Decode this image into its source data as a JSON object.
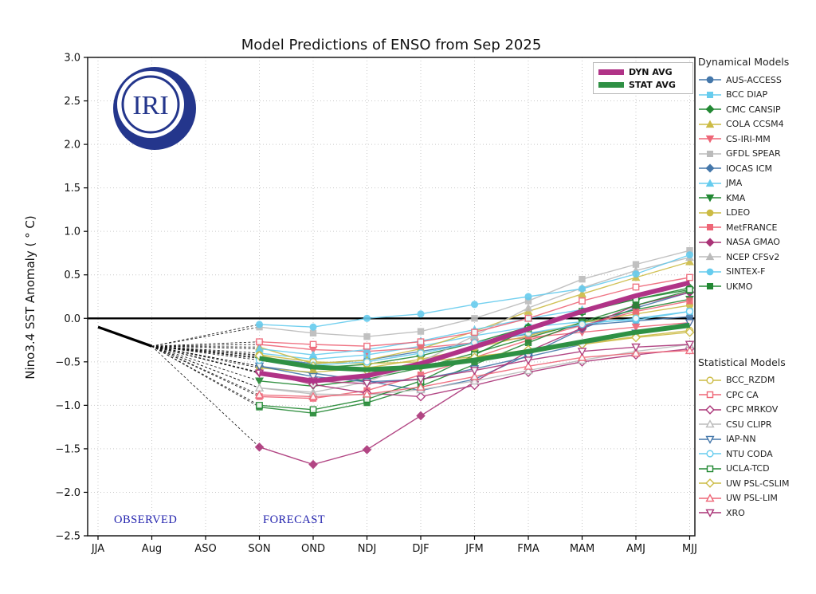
{
  "title": "Model Predictions of ENSO from Sep 2025",
  "logo": {
    "text": "IRI",
    "color": "#24368C"
  },
  "annotations": {
    "observed_label": "OBSERVED",
    "forecast_label": "FORECAST",
    "label_color": "#2323AE"
  },
  "legend_panel": {
    "dynamical_heading": "Dynamical Models",
    "statistical_heading": "Statistical Models"
  },
  "chart_data": {
    "type": "line",
    "title": "Model Predictions of ENSO from Sep 2025",
    "xlabel": "",
    "ylabel": "Nino3.4 SST Anomaly ( ° C)",
    "ylim": [
      -2.5,
      3.0
    ],
    "ytick_step": 0.5,
    "yticks": [
      3.0,
      2.5,
      2.0,
      1.5,
      1.0,
      0.5,
      0.0,
      -0.5,
      -1.0,
      -1.5,
      -2.0,
      -2.5
    ],
    "categories": [
      "JJA",
      "Aug",
      "ASO",
      "SON",
      "OND",
      "NDJ",
      "DJF",
      "JFM",
      "FMA",
      "MAM",
      "AMJ",
      "MJJ"
    ],
    "grid": "dotted",
    "zero_line": 0.0,
    "forecast_start_index": 3,
    "observed": {
      "name": "Observed",
      "color": "#000000",
      "x": [
        "JJA",
        "Aug"
      ],
      "values": [
        -0.1,
        -0.32
      ]
    },
    "series": [
      {
        "name": "AUS-ACCESS",
        "group": "dynamical",
        "color": "#4477AA",
        "marker": "circle",
        "fill": "filled",
        "values": [
          -0.45,
          -0.52,
          -0.48,
          -0.38,
          -0.28,
          -0.18,
          -0.08,
          -0.03,
          0.02
        ]
      },
      {
        "name": "BCC DIAP",
        "group": "dynamical",
        "color": "#66CCEE",
        "marker": "square",
        "fill": "filled",
        "values": [
          -0.4,
          -0.47,
          -0.42,
          -0.32,
          -0.2,
          -0.1,
          -0.04,
          -0.02,
          0.08
        ]
      },
      {
        "name": "CMC CANSIP",
        "group": "dynamical",
        "color": "#228833",
        "marker": "diamond",
        "fill": "filled",
        "values": [
          -0.45,
          -0.57,
          -0.53,
          -0.43,
          -0.28,
          -0.1,
          0.07,
          0.22,
          0.35
        ]
      },
      {
        "name": "COLA CCSM4",
        "group": "dynamical",
        "color": "#CCBB44",
        "marker": "triangle",
        "fill": "filled",
        "values": [
          -0.33,
          -0.52,
          -0.48,
          -0.35,
          -0.15,
          0.08,
          0.28,
          0.47,
          0.65
        ]
      },
      {
        "name": "CS-IRI-MM",
        "group": "dynamical",
        "color": "#EE6677",
        "marker": "triangle-down",
        "fill": "filled",
        "values": [
          -0.3,
          -0.36,
          -0.38,
          -0.34,
          -0.28,
          -0.22,
          -0.16,
          -0.1,
          -0.05
        ]
      },
      {
        "name": "GFDL SPEAR",
        "group": "dynamical",
        "color": "#BBBBBB",
        "marker": "square",
        "fill": "filled",
        "values": [
          -0.1,
          -0.17,
          -0.21,
          -0.15,
          0.0,
          0.2,
          0.45,
          0.62,
          0.78
        ]
      },
      {
        "name": "IOCAS ICM",
        "group": "dynamical",
        "color": "#4477AA",
        "marker": "diamond",
        "fill": "filled",
        "values": [
          -0.55,
          -0.63,
          -0.72,
          -0.83,
          -0.7,
          -0.42,
          -0.12,
          0.12,
          0.3
        ]
      },
      {
        "name": "JMA",
        "group": "dynamical",
        "color": "#66CCEE",
        "marker": "triangle",
        "fill": "filled",
        "values": [
          -0.35,
          -0.42,
          -0.36,
          -0.26,
          -0.13,
          0.0,
          0.1
        ]
      },
      {
        "name": "KMA",
        "group": "dynamical",
        "color": "#228833",
        "marker": "triangle-down",
        "fill": "filled",
        "values": [
          -0.72,
          -0.78,
          -0.7,
          -0.57,
          -0.4,
          -0.22,
          -0.05,
          0.1,
          0.22
        ]
      },
      {
        "name": "LDEO",
        "group": "dynamical",
        "color": "#CCBB44",
        "marker": "circle",
        "fill": "filled",
        "values": [
          -0.57,
          -0.62,
          -0.57,
          -0.47,
          -0.34,
          -0.2,
          -0.05,
          0.05,
          0.15
        ]
      },
      {
        "name": "MetFRANCE",
        "group": "dynamical",
        "color": "#EE6677",
        "marker": "square",
        "fill": "filled",
        "values": [
          -0.9,
          -0.92,
          -0.83,
          -0.65,
          -0.45,
          -0.25,
          -0.08,
          0.08,
          0.2
        ]
      },
      {
        "name": "NASA GMAO",
        "group": "dynamical",
        "color": "#AA3377",
        "marker": "diamond",
        "fill": "filled",
        "values": [
          -1.48,
          -1.68,
          -1.51,
          -1.12,
          -0.73,
          -0.38,
          -0.11,
          0.15,
          0.3
        ]
      },
      {
        "name": "NCEP CFSv2",
        "group": "dynamical",
        "color": "#BBBBBB",
        "marker": "triangle",
        "fill": "filled",
        "values": [
          -0.8,
          -0.85,
          -0.73,
          -0.5,
          -0.2,
          0.12,
          0.35,
          0.55,
          0.7
        ]
      },
      {
        "name": "SINTEX-F",
        "group": "dynamical",
        "color": "#66CCEE",
        "marker": "circle",
        "fill": "filled",
        "values": [
          -0.07,
          -0.1,
          0.0,
          0.05,
          0.16,
          0.25,
          0.34,
          0.51,
          0.73
        ]
      },
      {
        "name": "UKMO",
        "group": "dynamical",
        "color": "#228833",
        "marker": "square",
        "fill": "filled",
        "values": [
          -1.02,
          -1.09,
          -0.97,
          -0.78,
          -0.53,
          -0.28,
          -0.04,
          0.15,
          0.32
        ]
      },
      {
        "name": "BCC_RZDM",
        "group": "statistical",
        "color": "#CCBB44",
        "marker": "circle",
        "fill": "open",
        "values": [
          -0.42,
          -0.5,
          -0.52,
          -0.5,
          -0.44,
          -0.37,
          -0.29,
          -0.21,
          -0.14
        ]
      },
      {
        "name": "CPC CA",
        "group": "statistical",
        "color": "#EE6677",
        "marker": "square",
        "fill": "open",
        "values": [
          -0.27,
          -0.3,
          -0.32,
          -0.27,
          -0.16,
          0.0,
          0.2,
          0.36,
          0.47
        ]
      },
      {
        "name": "CPC MRKOV",
        "group": "statistical",
        "color": "#AA3377",
        "marker": "diamond",
        "fill": "open",
        "values": [
          -0.62,
          -0.76,
          -0.86,
          -0.9,
          -0.77,
          -0.62,
          -0.5,
          -0.42,
          -0.35
        ]
      },
      {
        "name": "CSU CLIPR",
        "group": "statistical",
        "color": "#BBBBBB",
        "marker": "triangle",
        "fill": "open",
        "values": [
          -0.8,
          -0.87,
          -0.88,
          -0.82,
          -0.72,
          -0.6,
          -0.48,
          -0.38,
          -0.3
        ]
      },
      {
        "name": "IAP-NN",
        "group": "statistical",
        "color": "#4477AA",
        "marker": "triangle-down",
        "fill": "open",
        "values": [
          -0.55,
          -0.67,
          -0.73,
          -0.7,
          -0.58,
          -0.44,
          -0.3,
          -0.17,
          -0.05
        ]
      },
      {
        "name": "NTU CODA",
        "group": "statistical",
        "color": "#66CCEE",
        "marker": "circle",
        "fill": "open",
        "values": [
          -0.48,
          -0.54,
          -0.5,
          -0.4,
          -0.28,
          -0.17,
          -0.07,
          0.0,
          0.08
        ]
      },
      {
        "name": "UCLA-TCD",
        "group": "statistical",
        "color": "#228833",
        "marker": "square",
        "fill": "open",
        "values": [
          -1.0,
          -1.05,
          -0.93,
          -0.72,
          -0.42,
          -0.12,
          0.08,
          0.22,
          0.33
        ]
      },
      {
        "name": "UW PSL-CSLIM",
        "group": "statistical",
        "color": "#CCBB44",
        "marker": "diamond",
        "fill": "open",
        "values": [
          -0.43,
          -0.55,
          -0.6,
          -0.55,
          -0.45,
          -0.36,
          -0.3,
          -0.22,
          -0.16
        ]
      },
      {
        "name": "UW PSL-LIM",
        "group": "statistical",
        "color": "#EE6677",
        "marker": "triangle",
        "fill": "open",
        "values": [
          -0.88,
          -0.9,
          -0.87,
          -0.79,
          -0.67,
          -0.55,
          -0.45,
          -0.4,
          -0.37
        ]
      },
      {
        "name": "XRO",
        "group": "statistical",
        "color": "#AA3377",
        "marker": "triangle-down",
        "fill": "open",
        "values": [
          -0.63,
          -0.72,
          -0.75,
          -0.7,
          -0.6,
          -0.48,
          -0.38,
          -0.33,
          -0.3
        ]
      }
    ],
    "averages": [
      {
        "name": "DYN AVG",
        "color": "#B03387",
        "values": [
          -0.63,
          -0.72,
          -0.66,
          -0.52,
          -0.33,
          -0.12,
          0.08,
          0.26,
          0.41
        ]
      },
      {
        "name": "STAT AVG",
        "color": "#2E9044",
        "values": [
          -0.46,
          -0.56,
          -0.59,
          -0.56,
          -0.48,
          -0.38,
          -0.27,
          -0.16,
          -0.08
        ]
      }
    ],
    "legend_position": "right"
  }
}
